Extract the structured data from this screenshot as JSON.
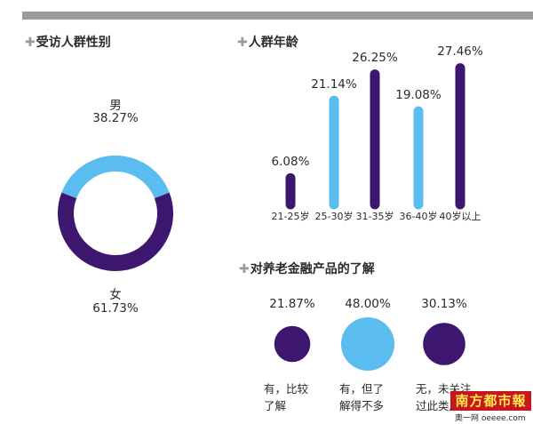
{
  "gender": {
    "title": "受访人群性别",
    "plus": "✚",
    "male_label": "男",
    "male_value": "38.27%",
    "female_label": "女",
    "female_value": "61.73%"
  },
  "age": {
    "title": "人群年龄",
    "plus": "✚",
    "categories": [
      "21-25岁",
      "25-30岁",
      "31-35岁",
      "36-40岁",
      "40岁以上"
    ],
    "value_labels": [
      "6.08%",
      "21.14%",
      "26.25%",
      "19.08%",
      "27.46%"
    ]
  },
  "awareness": {
    "title": "对养老金融产品的了解",
    "plus": "✚",
    "values": [
      "21.87%",
      "48.00%",
      "30.13%"
    ],
    "options": [
      {
        "line1": "有，比较",
        "line2": "了解"
      },
      {
        "line1": "有，但了",
        "line2": "解得不多"
      },
      {
        "line1": "无，未关注",
        "line2": "过此类产品"
      }
    ]
  },
  "watermark": {
    "logo": "南方都市報",
    "sub": "奥一网 oeeee.com"
  },
  "colors": {
    "purple": "#3d1670",
    "light_blue": "#5bbcef",
    "text": "#2a2a2a",
    "gray": "#9a9a9a"
  },
  "chart_data": [
    {
      "type": "pie",
      "title": "受访人群性别",
      "categories": [
        "男",
        "女"
      ],
      "values": [
        38.27,
        61.73
      ]
    },
    {
      "type": "bar",
      "title": "人群年龄",
      "categories": [
        "21-25岁",
        "25-30岁",
        "31-35岁",
        "36-40岁",
        "40岁以上"
      ],
      "values": [
        6.08,
        21.14,
        26.25,
        19.08,
        27.46
      ],
      "ylim": [
        0,
        28
      ]
    },
    {
      "type": "bar",
      "title": "对养老金融产品的了解",
      "categories": [
        "有，比较了解",
        "有，但了解得不多",
        "无，未关注过此类产品"
      ],
      "values": [
        21.87,
        48.0,
        30.13
      ]
    }
  ]
}
